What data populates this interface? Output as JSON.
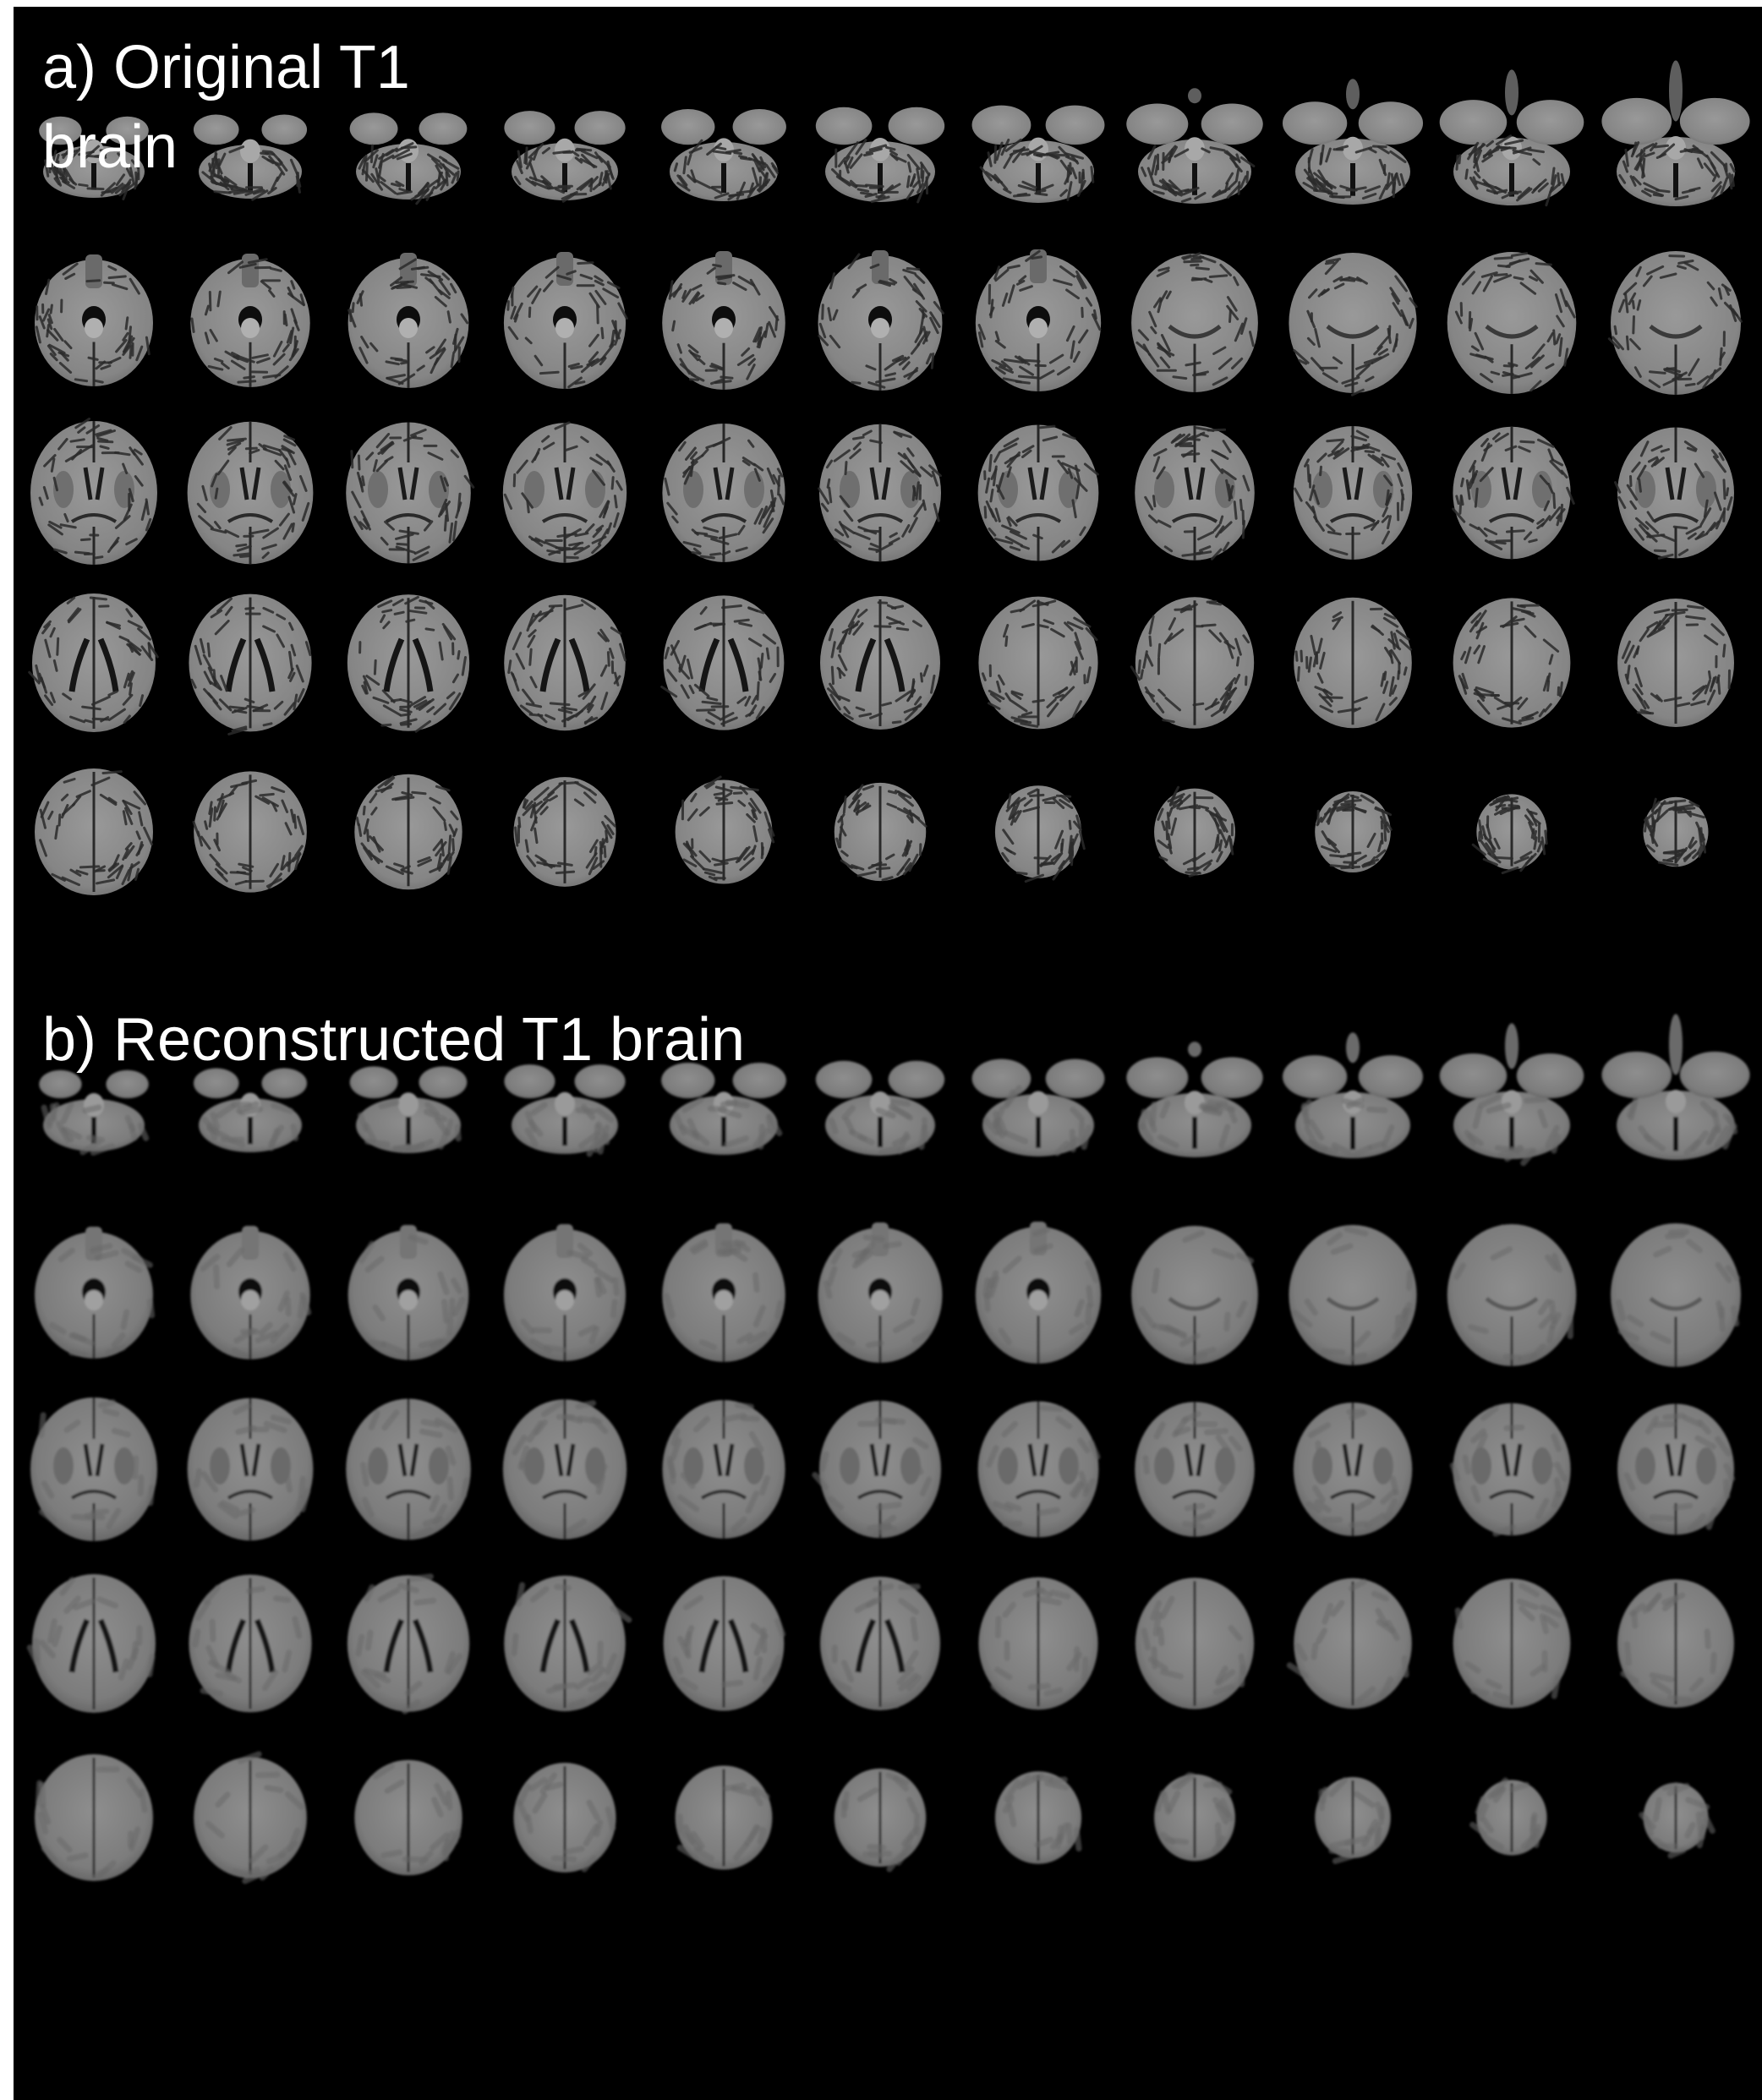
{
  "panels": {
    "a": {
      "label_line1": "a) Original T1",
      "label_line2": "brain",
      "rows": 5,
      "cols": 11,
      "style": "original"
    },
    "b": {
      "label": "b) Reconstructed T1 brain",
      "rows": 5,
      "cols": 11,
      "style": "reconstructed"
    }
  },
  "colors": {
    "background": "#000000",
    "label_text": "#ffffff",
    "original_tissue": "#8a8a8a",
    "original_sulci": "#2b2b2b",
    "reconstructed_tissue": "#838383",
    "reconstructed_shade": "#6a6a6a"
  }
}
